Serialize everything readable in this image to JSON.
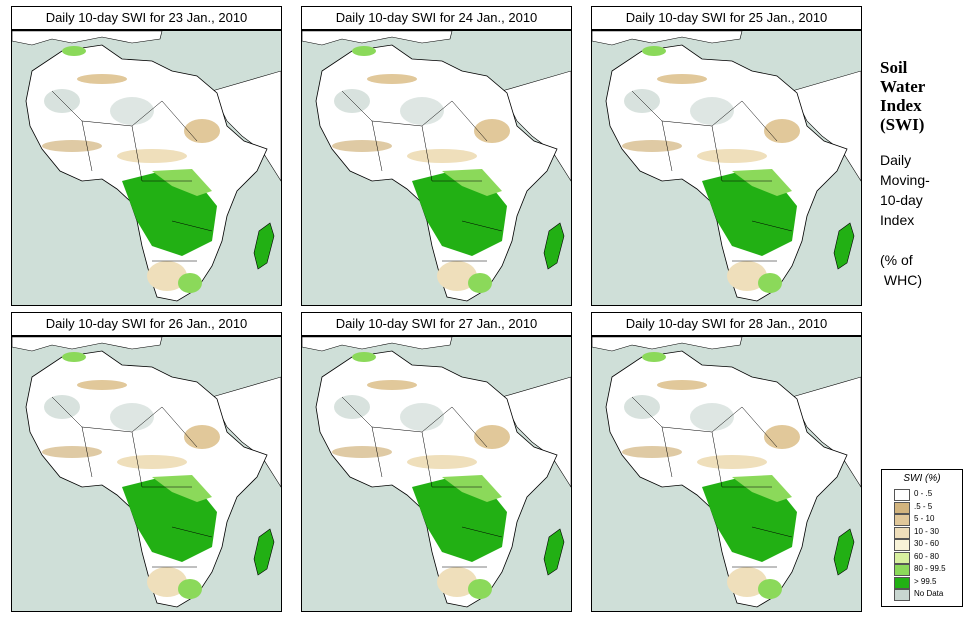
{
  "panels": [
    {
      "title": "Daily 10-day SWI for  23 Jan., 2010"
    },
    {
      "title": "Daily 10-day SWI for  24 Jan., 2010"
    },
    {
      "title": "Daily 10-day SWI for  25 Jan., 2010"
    },
    {
      "title": "Daily 10-day SWI for  26 Jan., 2010"
    },
    {
      "title": "Daily 10-day SWI for  27 Jan., 2010"
    },
    {
      "title": "Daily 10-day SWI for  28 Jan., 2010"
    }
  ],
  "side_legend": {
    "title_lines": [
      "Soil",
      "Water",
      "Index",
      "(SWI)"
    ],
    "sub_lines": [
      "Daily",
      "Moving-",
      "10-day",
      "Index",
      "",
      "(% of",
      " WHC)"
    ]
  },
  "color_legend": {
    "title": "SWI (%)",
    "items": [
      {
        "label": "0 - .5",
        "color": "#ffffff"
      },
      {
        "label": ".5 - 5",
        "color": "#d2b47e"
      },
      {
        "label": "5 - 10",
        "color": "#e1c89a"
      },
      {
        "label": "10 - 30",
        "color": "#efdfbb"
      },
      {
        "label": "30 - 60",
        "color": "#f8f3d8"
      },
      {
        "label": "60 - 80",
        "color": "#d8f0a0"
      },
      {
        "label": "80 - 99.5",
        "color": "#8bd95a"
      },
      {
        "label": "> 99.5",
        "color": "#22b014"
      },
      {
        "label": "No Data",
        "color": "#c8d6d0"
      }
    ]
  },
  "colors": {
    "sea": "#cfdfd8",
    "land": "#ffffff",
    "wet": "#22b014",
    "moist": "#8bd95a",
    "dry": "#d2b47e",
    "nodata": "#c8d6d0"
  }
}
